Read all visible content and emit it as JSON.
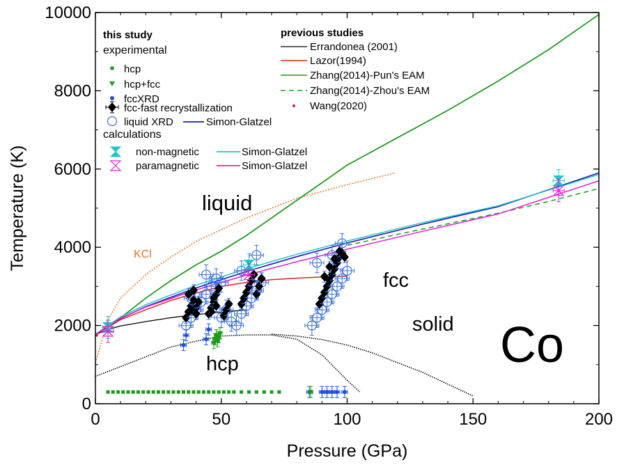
{
  "chart_data": {
    "type": "scatter",
    "title": "",
    "xlabel": "Pressure (GPa)",
    "ylabel": "Temperature (K)",
    "xlim": [
      0,
      200
    ],
    "ylim": [
      0,
      10000
    ],
    "xticks": [
      0,
      50,
      100,
      150,
      200
    ],
    "yticks": [
      0,
      2000,
      4000,
      6000,
      8000,
      10000
    ],
    "grid": false,
    "legend_position": "top-left",
    "legend_headers": {
      "this_study": "this study",
      "experimental": "experimental",
      "calculations": "calculations",
      "previous": "previous studies"
    },
    "legend": {
      "hcp": "hcp",
      "hcp_fcc": "hcp+fcc",
      "fccxrd": "fccXRD",
      "fcc_fast": "fcc-fast recrystallization",
      "liquid_xrd": "liquid XRD",
      "simon_exp": "Simon-Glatzel",
      "nonmag": "non-magnetic",
      "simon_nonmag": "Simon-Glatzel",
      "paramag": "paramagnetic",
      "simon_paramag": "Simon-Glatzel",
      "errandonea": "Errandonea (2001)",
      "lazor": "Lazor(1994)",
      "zhang_pun": "Zhang(2014)-Pun's EAM",
      "zhang_zhou": "Zhang(2014)-Zhou's EAM",
      "wang": "Wang(2020)"
    },
    "annotations": {
      "liquid": "liquid",
      "kcl": "KCl",
      "fcc": "fcc",
      "solid": "solid",
      "hcp": "hcp",
      "element": "Co"
    },
    "colors": {
      "hcp": "#1a9a1a",
      "fccxrd": "#1f4fd8",
      "liquid_xrd": "#3b6fe0",
      "simon_exp": "#1a1ab0",
      "nonmag": "#22c4c4",
      "paramag": "#e020d0",
      "errandonea": "#000000",
      "lazor": "#e02020",
      "zhang": "#1e9a1e",
      "wang": "#e02020",
      "kcl": "#e87020"
    },
    "series": {
      "simon_exp": {
        "x": [
          0,
          10,
          20,
          40,
          60,
          80,
          100,
          130,
          160,
          200
        ],
        "y": [
          1770,
          2180,
          2480,
          2960,
          3380,
          3760,
          4110,
          4590,
          5040,
          5900
        ]
      },
      "simon_nonmag": {
        "x": [
          0,
          10,
          20,
          40,
          60,
          80,
          100,
          130,
          160,
          200
        ],
        "y": [
          1770,
          2220,
          2530,
          3030,
          3450,
          3820,
          4160,
          4630,
          5060,
          5860
        ]
      },
      "simon_paramag": {
        "x": [
          0,
          10,
          20,
          40,
          60,
          80,
          100,
          130,
          160,
          200
        ],
        "y": [
          1770,
          2190,
          2470,
          2910,
          3290,
          3630,
          3950,
          4410,
          4850,
          5700
        ]
      },
      "errandonea": {
        "x": [
          0,
          5,
          10,
          20,
          30,
          40,
          50,
          60
        ],
        "y": [
          1770,
          1900,
          1990,
          2100,
          2200,
          2280,
          2340,
          2400
        ]
      },
      "lazor": {
        "x": [
          0,
          10,
          20,
          30,
          40,
          50,
          60,
          70,
          80,
          90,
          100
        ],
        "y": [
          1770,
          2150,
          2400,
          2640,
          2830,
          3000,
          3100,
          3170,
          3210,
          3240,
          3260
        ]
      },
      "zhang_pun": {
        "x": [
          0,
          10,
          20,
          30,
          40,
          50,
          60,
          70,
          80,
          90,
          100,
          120,
          140,
          160,
          180,
          200
        ],
        "y": [
          1770,
          2200,
          2700,
          3150,
          3550,
          3900,
          4300,
          4750,
          5200,
          5650,
          6100,
          6800,
          7500,
          8250,
          9050,
          9950
        ]
      },
      "zhang_zhou": {
        "x": [
          100,
          120,
          140,
          160,
          180,
          200
        ],
        "y": [
          4050,
          4330,
          4600,
          4870,
          5170,
          5500
        ]
      },
      "kcl_line": {
        "x": [
          0,
          5,
          10,
          20,
          30,
          40,
          50,
          60,
          80,
          100,
          119
        ],
        "y": [
          1050,
          2150,
          2700,
          3300,
          3750,
          4150,
          4450,
          4750,
          5250,
          5600,
          5900
        ]
      },
      "hcp_fcc_boundary": {
        "x": [
          0,
          10,
          20,
          30,
          40,
          50,
          60,
          70,
          80,
          90,
          100,
          105
        ],
        "y": [
          700,
          950,
          1200,
          1450,
          1600,
          1730,
          1760,
          1760,
          1650,
          1250,
          600,
          300
        ]
      },
      "lower_boundary": {
        "x": [
          70,
          80,
          90,
          100,
          110,
          120,
          130,
          140,
          150
        ],
        "y": [
          1780,
          1730,
          1640,
          1500,
          1300,
          1050,
          800,
          500,
          200
        ]
      },
      "hcp_points": {
        "x": [
          5,
          7,
          9,
          11,
          13,
          15,
          17,
          19,
          21,
          23,
          25,
          27,
          29,
          31,
          33,
          35,
          37,
          39,
          41,
          43,
          45,
          47,
          49,
          51,
          53,
          55,
          58,
          61,
          64,
          67,
          70,
          73
        ],
        "y": [
          300,
          300,
          300,
          300,
          300,
          300,
          300,
          300,
          300,
          300,
          300,
          300,
          300,
          300,
          300,
          300,
          300,
          300,
          300,
          300,
          300,
          300,
          300,
          300,
          300,
          300,
          300,
          300,
          300,
          300,
          300,
          300
        ]
      },
      "hcp_fcc_points": {
        "x": [
          47,
          47.5,
          48,
          48.5,
          49,
          49.5,
          85.5
        ],
        "y": [
          1550,
          1650,
          1750,
          1600,
          1700,
          1800,
          300
        ]
      },
      "fccxrd_points": {
        "x": [
          35,
          36,
          44,
          45,
          85,
          90,
          92,
          94,
          96,
          99
        ],
        "y": [
          1500,
          1750,
          1650,
          1900,
          300,
          300,
          300,
          300,
          300,
          300
        ]
      },
      "fcc_fast_points": {
        "x": [
          36,
          37,
          38,
          39,
          40,
          37,
          39,
          41,
          38,
          40,
          45,
          46,
          47,
          48,
          49,
          47,
          48,
          46,
          51,
          52,
          53,
          58,
          59,
          60,
          61,
          62,
          63,
          64,
          65,
          66,
          89,
          90,
          91,
          92,
          93,
          94,
          95,
          96,
          97,
          91,
          93,
          95,
          97,
          98,
          99
        ],
        "y": [
          2200,
          2350,
          2500,
          2650,
          2450,
          2800,
          2900,
          2600,
          2400,
          2300,
          2300,
          2450,
          2600,
          2800,
          2950,
          2700,
          2500,
          2350,
          2250,
          2400,
          2550,
          2550,
          2700,
          2850,
          3000,
          3150,
          3300,
          2800,
          3000,
          3200,
          2550,
          2700,
          2850,
          3000,
          3150,
          3300,
          3450,
          3600,
          3750,
          3250,
          3500,
          3700,
          3900,
          3850,
          3750
        ]
      },
      "liquid_xrd_points": {
        "x": [
          36,
          38,
          40,
          42,
          44,
          46,
          48,
          50,
          52,
          54,
          56,
          58,
          60,
          62,
          64,
          66,
          86,
          88,
          90,
          92,
          94,
          96,
          98,
          100,
          38,
          44,
          50,
          58,
          64,
          88,
          94,
          98
        ],
        "y": [
          2000,
          2200,
          2400,
          2600,
          2800,
          3000,
          3200,
          2200,
          2400,
          2100,
          2000,
          2300,
          2500,
          2700,
          2900,
          3100,
          2000,
          2200,
          2400,
          2600,
          2800,
          3000,
          3200,
          3400,
          2700,
          3300,
          3100,
          3400,
          3800,
          3600,
          3800,
          4100
        ]
      },
      "nonmag_points": {
        "x": [
          5,
          61,
          184
        ],
        "y": [
          1950,
          3550,
          5700
        ]
      },
      "paramag_points": {
        "x": [
          5,
          61,
          184
        ],
        "y": [
          1850,
          3300,
          5450
        ]
      },
      "wang_points": {
        "x": [
          0.5
        ],
        "y": [
          1750
        ]
      }
    }
  }
}
